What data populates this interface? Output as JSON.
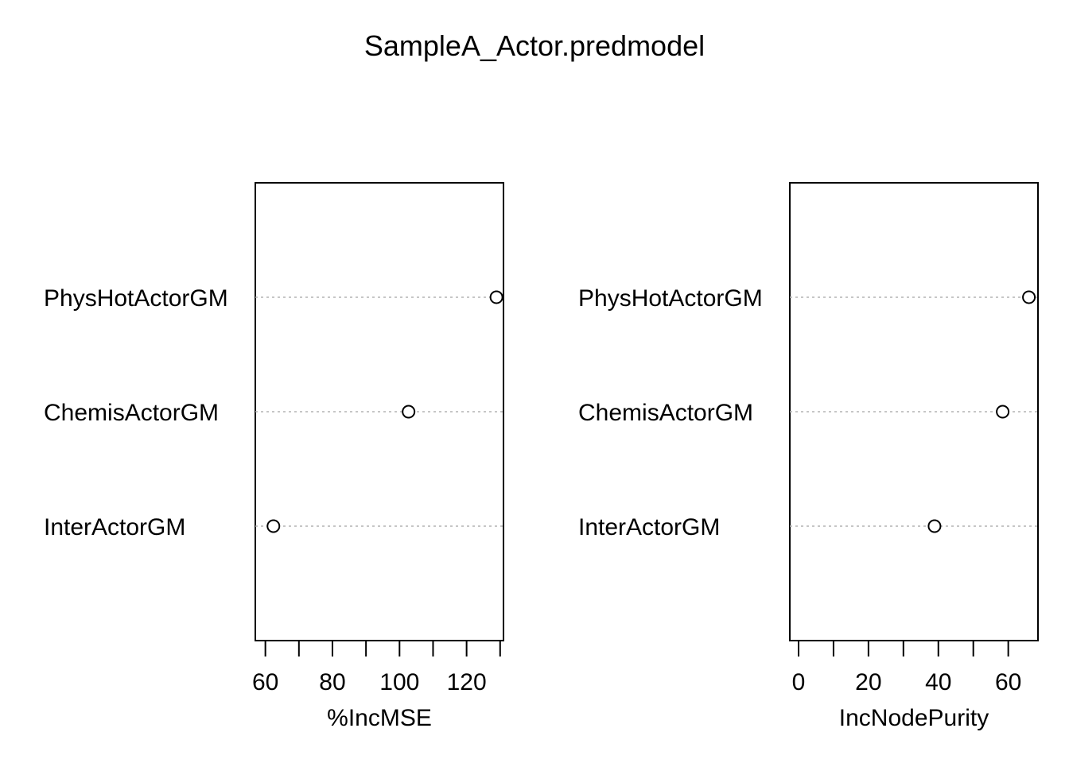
{
  "chart_data": {
    "type": "scatter",
    "title": "SampleA_Actor.predmodel",
    "categories": [
      "PhysHotActorGM",
      "ChemisActorGM",
      "InterActorGM"
    ],
    "panels": [
      {
        "xlabel": "%IncMSE",
        "xlim": [
          57,
          131
        ],
        "ticks": [
          60,
          70,
          80,
          90,
          100,
          110,
          120,
          130
        ],
        "tick_labels": [
          "60",
          "",
          "80",
          "",
          "100",
          "",
          "120",
          ""
        ],
        "values": [
          128.9,
          102.7,
          62.4
        ],
        "grid": "dotted horizontal guide lines"
      },
      {
        "xlabel": "IncNodePurity",
        "xlim": [
          -2.5,
          68.5
        ],
        "ticks": [
          0,
          10,
          20,
          30,
          40,
          50,
          60
        ],
        "tick_labels": [
          "0",
          "",
          "20",
          "",
          "40",
          "",
          "60"
        ],
        "values": [
          65.9,
          58.4,
          38.9
        ],
        "grid": "dotted horizontal guide lines"
      }
    ],
    "marker": "open circle",
    "colors": {
      "axis": "#000000",
      "guide": "#b3b3b3",
      "point": "#000000"
    }
  }
}
